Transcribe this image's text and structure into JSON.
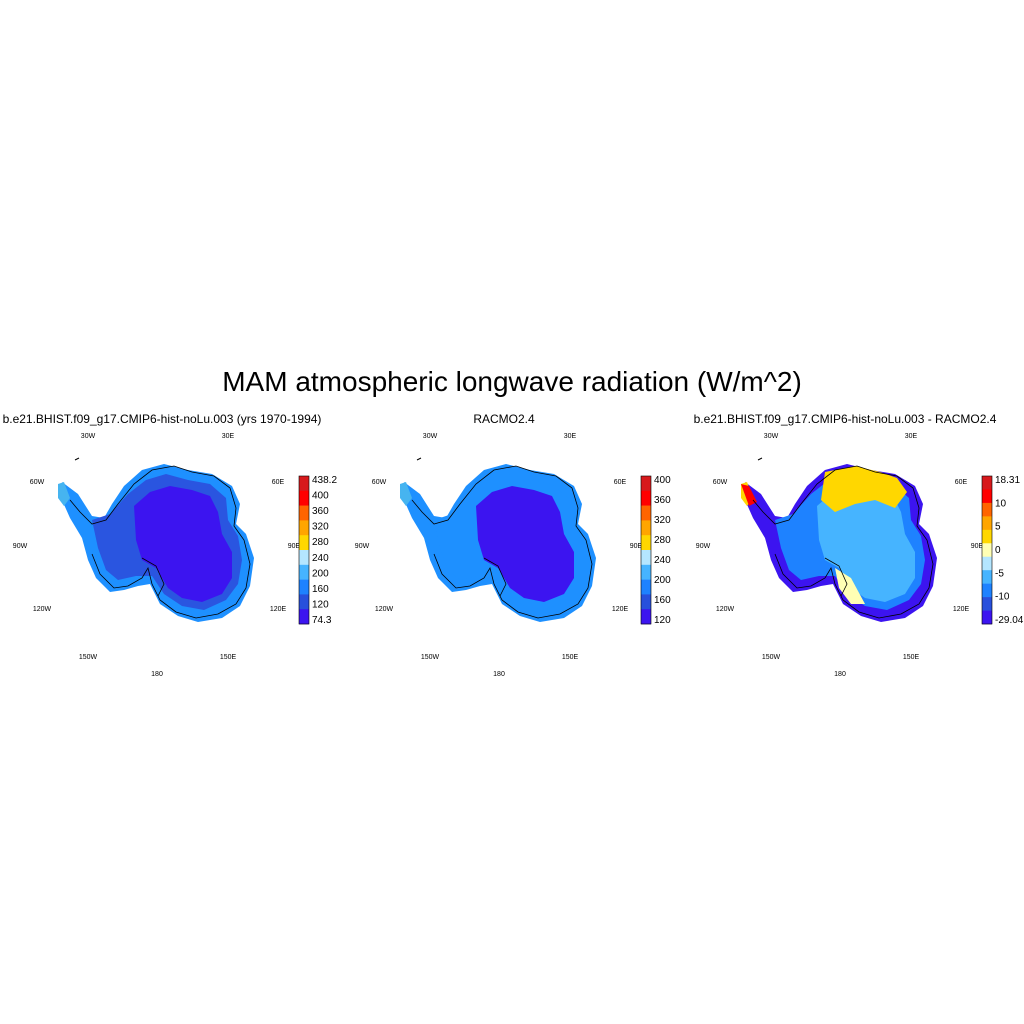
{
  "title": "MAM atmospheric longwave radiation (W/m^2)",
  "longitude_labels": [
    "30W",
    "30E",
    "60W",
    "60E",
    "90W",
    "90E",
    "120W",
    "120E",
    "150W",
    "150E",
    "180"
  ],
  "panels": [
    {
      "title": "b.e21.BHIST.f09_g17.CMIP6-hist-noLu.003 (yrs 1970-1994)",
      "colorbar": {
        "labels": [
          "438.2",
          "400",
          "360",
          "320",
          "280",
          "240",
          "200",
          "160",
          "120",
          "74.3"
        ],
        "colors": [
          "#d7191c",
          "#ff0000",
          "#ff6400",
          "#ffa500",
          "#ffd700",
          "#b4e6ff",
          "#46b4ff",
          "#1e82ff",
          "#2850dc",
          "#3c14f0"
        ]
      },
      "fill_colors": {
        "interior": "#3c14f0",
        "ring": "#2a55e0",
        "coast": "#1e90ff",
        "edge": "#46b4f0"
      }
    },
    {
      "title": "RACMO2.4",
      "colorbar": {
        "labels": [
          "400",
          "360",
          "320",
          "280",
          "240",
          "200",
          "160",
          "120"
        ],
        "colors": [
          "#d7191c",
          "#ff0000",
          "#ff6400",
          "#ffa500",
          "#ffd700",
          "#b4e6ff",
          "#46b4ff",
          "#1e82ff",
          "#2850dc",
          "#3c14f0"
        ]
      },
      "fill_colors": {
        "interior": "#3c14f0",
        "ring": "#1e90ff",
        "coast": "#1e90ff",
        "edge": "#46b4f0"
      }
    },
    {
      "title": "b.e21.BHIST.f09_g17.CMIP6-hist-noLu.003 - RACMO2.4",
      "colorbar": {
        "labels": [
          "18.31",
          "10",
          "5",
          "0",
          "-5",
          "-10",
          "-29.04"
        ],
        "colors": [
          "#d7191c",
          "#ff0000",
          "#ff6400",
          "#ffa500",
          "#ffd700",
          "#ffffb4",
          "#b4e6ff",
          "#46b4ff",
          "#1e82ff",
          "#2850dc",
          "#3c14f0"
        ]
      },
      "fill_colors": {
        "interior": "#46b4ff",
        "ring": "#1e82ff",
        "coast": "#3c14f0",
        "edge": "#ffd700"
      }
    }
  ]
}
